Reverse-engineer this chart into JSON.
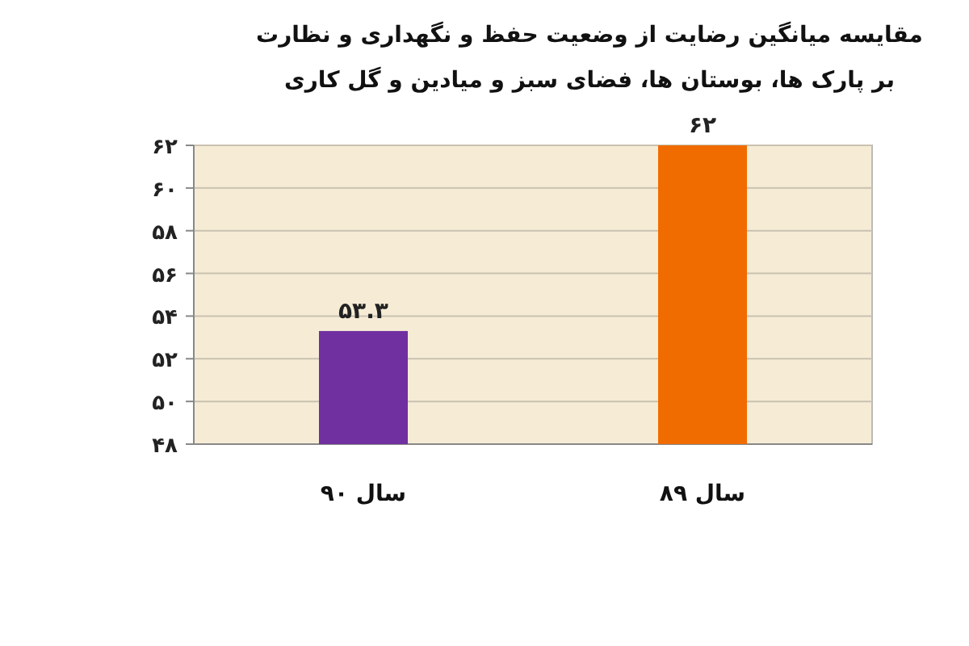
{
  "chart_data": {
    "type": "bar",
    "title": "مقایسه میانگین رضایت از وضعیت حفظ و نگهداری و نظارت بر پارک ها، بوستان ها، فضای سبز و میادین و گل کاری",
    "categories": [
      "سال ۹۰",
      "سال ۸۹"
    ],
    "values": [
      53.3,
      62
    ],
    "colors": [
      "#7030a0",
      "#f06c00"
    ],
    "value_labels": [
      "۵۳.۳",
      "۶۲"
    ],
    "ylim": [
      48,
      62
    ],
    "yticks": [
      {
        "value": 48,
        "label": "۴۸"
      },
      {
        "value": 50,
        "label": "۵۰"
      },
      {
        "value": 52,
        "label": "۵۲"
      },
      {
        "value": 54,
        "label": "۵۴"
      },
      {
        "value": 56,
        "label": "۵۶"
      },
      {
        "value": 58,
        "label": "۵۸"
      },
      {
        "value": 60,
        "label": "۶۰"
      },
      {
        "value": 62,
        "label": "۶۲"
      }
    ],
    "grid": "y"
  }
}
